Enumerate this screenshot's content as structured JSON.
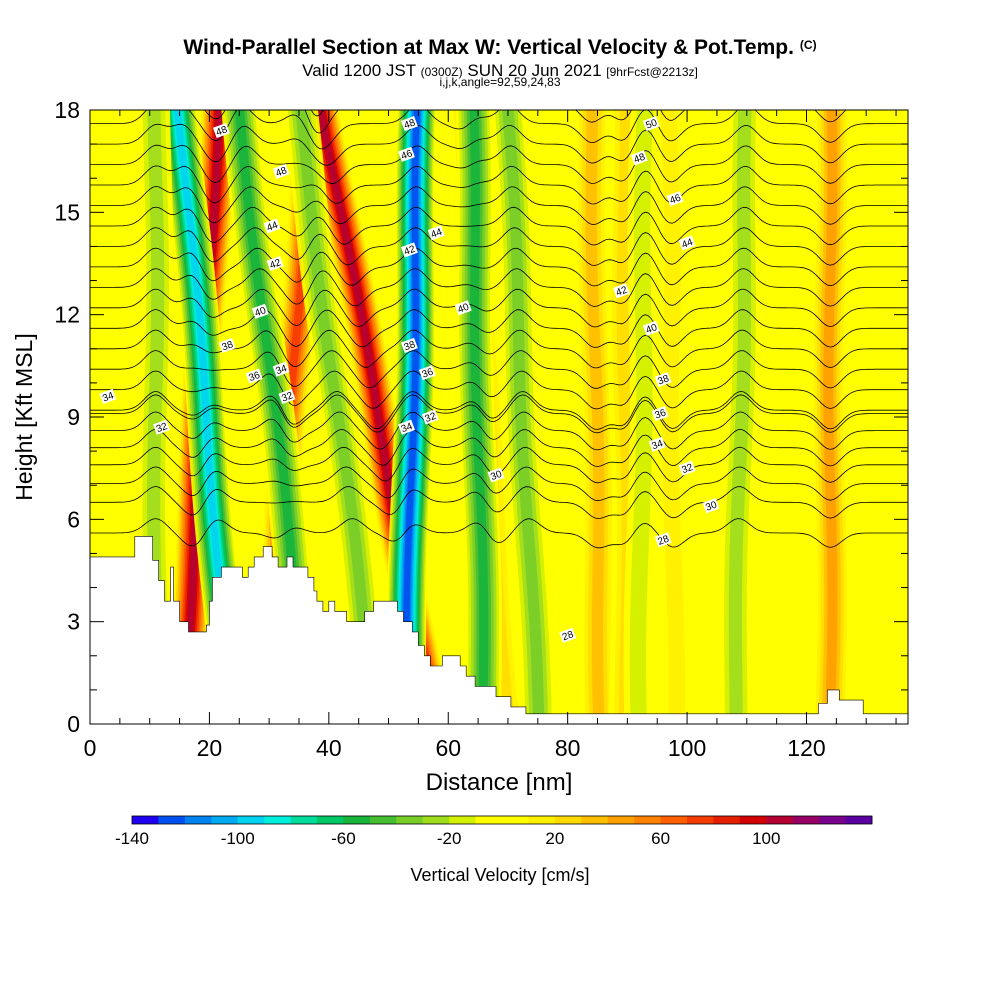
{
  "title": {
    "main": "Wind-Parallel Section at Max W: Vertical Velocity & Pot.Temp.",
    "copyright": "(C)",
    "valid_prefix": "Valid 1200 JST",
    "valid_utc": "(0300Z)",
    "valid_date": "SUN 20 Jun 2021",
    "forecast": "[9hrFcst@2213z]",
    "params": "i,j,k,angle=92,59,24,83"
  },
  "chart_data": {
    "type": "heatmap",
    "xlabel": "Distance [nm]",
    "ylabel": "Height [Kft MSL]",
    "xlim": [
      0,
      137
    ],
    "ylim": [
      0,
      18
    ],
    "xticks": [
      0,
      20,
      40,
      60,
      80,
      100,
      120
    ],
    "yticks": [
      0,
      3,
      6,
      9,
      12,
      15,
      18
    ],
    "colorbar": {
      "label": "Vertical Velocity [cm/s]",
      "min": -140,
      "max": 140,
      "step": 10,
      "tick_labels": [
        -140,
        -100,
        -60,
        -20,
        20,
        60,
        100
      ],
      "colors": [
        "#1e00f0",
        "#0050f0",
        "#0082f0",
        "#00aaf0",
        "#00d2f0",
        "#00eedc",
        "#00dc9b",
        "#00c864",
        "#18b43c",
        "#46be32",
        "#78cd28",
        "#a0dc1e",
        "#d2f000",
        "#ffff00",
        "#ffff00",
        "#fff000",
        "#ffdc00",
        "#ffbe00",
        "#ffa000",
        "#ff8200",
        "#ff5f00",
        "#f53c00",
        "#e61e00",
        "#d20000",
        "#b40032",
        "#960064",
        "#78008c",
        "#5a00a0"
      ]
    },
    "updraft_bands": [
      {
        "x_low": 15.5,
        "x_high": 21.5,
        "w_max": 110
      },
      {
        "x_low": 30,
        "x_high": 37,
        "w_max": 85
      },
      {
        "x_low": 57.5,
        "x_high": 39,
        "w_max": 110
      },
      {
        "x_low": 70,
        "x_high": 63,
        "w_max": 35
      },
      {
        "x_low": 85.5,
        "x_high": 84,
        "w_max": 45
      },
      {
        "x_low": 90,
        "x_high": 89.5,
        "w_max": 30
      },
      {
        "x_low": 124,
        "x_high": 124,
        "w_max": 50
      },
      {
        "x_low": 98,
        "x_high": 97,
        "w_max": 25
      }
    ],
    "downdraft_bands": [
      {
        "x_low": 24,
        "x_high": 15,
        "w_min": -100
      },
      {
        "x_low": 53,
        "x_high": 55,
        "w_min": -130
      },
      {
        "x_low": 37,
        "x_high": 25,
        "w_min": -60
      },
      {
        "x_low": 48,
        "x_high": 35,
        "w_min": -45
      },
      {
        "x_low": 66,
        "x_high": 64,
        "w_min": -65
      },
      {
        "x_low": 75,
        "x_high": 70,
        "w_min": -40
      },
      {
        "x_low": 11,
        "x_high": 11,
        "w_min": -35
      },
      {
        "x_low": 108,
        "x_high": 110,
        "w_min": -30
      },
      {
        "x_low": 92,
        "x_high": 93,
        "w_min": -25
      }
    ],
    "terrain": [
      [
        0,
        4.9
      ],
      [
        7.5,
        4.9
      ],
      [
        7.5,
        5.5
      ],
      [
        10.5,
        5.5
      ],
      [
        10.5,
        4.8
      ],
      [
        11.5,
        4.8
      ],
      [
        11.5,
        4.2
      ],
      [
        12.5,
        4.2
      ],
      [
        12.5,
        3.6
      ],
      [
        13.5,
        3.6
      ],
      [
        13.5,
        4.6
      ],
      [
        14,
        4.6
      ],
      [
        14,
        3.6
      ],
      [
        15,
        3.6
      ],
      [
        15,
        3.0
      ],
      [
        16.5,
        3.0
      ],
      [
        16.5,
        2.7
      ],
      [
        19.5,
        2.7
      ],
      [
        19.5,
        2.9
      ],
      [
        20,
        2.9
      ],
      [
        20,
        3.6
      ],
      [
        20.5,
        3.6
      ],
      [
        20.5,
        4.3
      ],
      [
        22,
        4.3
      ],
      [
        22,
        4.6
      ],
      [
        25.5,
        4.6
      ],
      [
        25.5,
        4.3
      ],
      [
        26.5,
        4.3
      ],
      [
        26.5,
        4.6
      ],
      [
        27.5,
        4.6
      ],
      [
        27.5,
        4.9
      ],
      [
        29,
        4.9
      ],
      [
        29,
        5.2
      ],
      [
        30.5,
        5.2
      ],
      [
        30.5,
        4.9
      ],
      [
        31.5,
        4.9
      ],
      [
        31.5,
        4.6
      ],
      [
        33,
        4.6
      ],
      [
        33,
        4.9
      ],
      [
        34,
        4.9
      ],
      [
        34,
        4.6
      ],
      [
        36.5,
        4.6
      ],
      [
        36.5,
        4.3
      ],
      [
        37.5,
        4.3
      ],
      [
        37.5,
        3.9
      ],
      [
        38,
        3.9
      ],
      [
        38,
        3.6
      ],
      [
        39,
        3.6
      ],
      [
        39,
        3.3
      ],
      [
        40,
        3.3
      ],
      [
        40,
        3.6
      ],
      [
        41,
        3.6
      ],
      [
        41,
        3.3
      ],
      [
        43,
        3.3
      ],
      [
        43,
        3.0
      ],
      [
        46,
        3.0
      ],
      [
        46,
        3.3
      ],
      [
        47.5,
        3.3
      ],
      [
        47.5,
        3.6
      ],
      [
        51.5,
        3.6
      ],
      [
        51.5,
        3.3
      ],
      [
        52.5,
        3.3
      ],
      [
        52.5,
        3.0
      ],
      [
        54,
        3.0
      ],
      [
        54,
        2.7
      ],
      [
        55,
        2.7
      ],
      [
        55,
        2.3
      ],
      [
        56,
        2.3
      ],
      [
        56,
        2.0
      ],
      [
        57,
        2.0
      ],
      [
        57,
        1.7
      ],
      [
        59,
        1.7
      ],
      [
        59,
        2.0
      ],
      [
        62,
        2.0
      ],
      [
        62,
        1.7
      ],
      [
        63,
        1.7
      ],
      [
        63,
        1.4
      ],
      [
        64.5,
        1.4
      ],
      [
        64.5,
        1.1
      ],
      [
        68,
        1.1
      ],
      [
        68,
        0.8
      ],
      [
        70.5,
        0.8
      ],
      [
        70.5,
        0.5
      ],
      [
        73,
        0.5
      ],
      [
        73,
        0.3
      ],
      [
        122,
        0.3
      ],
      [
        122,
        0.6
      ],
      [
        123.5,
        0.6
      ],
      [
        123.5,
        1.0
      ],
      [
        125.5,
        1.0
      ],
      [
        125.5,
        0.7
      ],
      [
        129.5,
        0.7
      ],
      [
        129.5,
        0.3
      ],
      [
        137,
        0.3
      ]
    ],
    "isentropes": [
      {
        "level": 28,
        "label_x": 95
      },
      {
        "level": 29,
        "label_x": 80
      },
      {
        "level": 30,
        "label_x": 104
      },
      {
        "level": 31,
        "label_x": 60
      },
      {
        "level": 32,
        "label_x": 100
      },
      {
        "level": 33,
        "label_x": 70
      },
      {
        "level": 34,
        "label_x": 96
      },
      {
        "level": 35,
        "label_x": 50
      },
      {
        "level": 36,
        "label_x": 96
      },
      {
        "level": 37,
        "label_x": 20
      },
      {
        "level": 38,
        "label_x": 96
      },
      {
        "level": 39,
        "label_x": 60
      },
      {
        "level": 40,
        "label_x": 94
      },
      {
        "level": 41,
        "label_x": 30
      },
      {
        "level": 42,
        "label_x": 90
      },
      {
        "level": 43,
        "label_x": 60
      },
      {
        "level": 44,
        "label_x": 100
      },
      {
        "level": 45,
        "label_x": 30
      },
      {
        "level": 46,
        "label_x": 100
      },
      {
        "level": 47,
        "label_x": 70
      },
      {
        "level": 48,
        "label_x": 92
      },
      {
        "level": 49,
        "label_x": 40
      },
      {
        "level": 50,
        "label_x": 94
      },
      {
        "level": 51,
        "label_x": 70
      }
    ],
    "contour_labels": [
      {
        "text": "48",
        "x": 22,
        "y": 17.4
      },
      {
        "text": "48",
        "x": 32,
        "y": 16.2
      },
      {
        "text": "44",
        "x": 30.5,
        "y": 14.6
      },
      {
        "text": "42",
        "x": 31,
        "y": 13.5
      },
      {
        "text": "40",
        "x": 28.5,
        "y": 12.1
      },
      {
        "text": "38",
        "x": 23,
        "y": 11.1
      },
      {
        "text": "36",
        "x": 27.5,
        "y": 10.2
      },
      {
        "text": "34",
        "x": 32,
        "y": 10.4
      },
      {
        "text": "32",
        "x": 33,
        "y": 9.6
      },
      {
        "text": "34",
        "x": 3,
        "y": 9.6
      },
      {
        "text": "32",
        "x": 12,
        "y": 8.7
      },
      {
        "text": "48",
        "x": 53.5,
        "y": 17.6
      },
      {
        "text": "46",
        "x": 53,
        "y": 16.7
      },
      {
        "text": "44",
        "x": 58,
        "y": 14.4
      },
      {
        "text": "42",
        "x": 53.5,
        "y": 13.9
      },
      {
        "text": "40",
        "x": 62.5,
        "y": 12.2
      },
      {
        "text": "38",
        "x": 53.5,
        "y": 11.1
      },
      {
        "text": "36",
        "x": 56.5,
        "y": 10.3
      },
      {
        "text": "34",
        "x": 53,
        "y": 8.7
      },
      {
        "text": "32",
        "x": 57,
        "y": 9.0
      },
      {
        "text": "30",
        "x": 68,
        "y": 7.3
      },
      {
        "text": "50",
        "x": 94,
        "y": 17.6
      },
      {
        "text": "48",
        "x": 92,
        "y": 16.6
      },
      {
        "text": "46",
        "x": 98,
        "y": 15.4
      },
      {
        "text": "44",
        "x": 100,
        "y": 14.1
      },
      {
        "text": "42",
        "x": 89,
        "y": 12.7
      },
      {
        "text": "40",
        "x": 94,
        "y": 11.6
      },
      {
        "text": "38",
        "x": 96,
        "y": 10.1
      },
      {
        "text": "36",
        "x": 95.5,
        "y": 9.1
      },
      {
        "text": "34",
        "x": 95,
        "y": 8.2
      },
      {
        "text": "32",
        "x": 100,
        "y": 7.5
      },
      {
        "text": "30",
        "x": 104,
        "y": 6.4
      },
      {
        "text": "28",
        "x": 96,
        "y": 5.4
      },
      {
        "text": "28",
        "x": 80,
        "y": 2.6
      }
    ]
  }
}
